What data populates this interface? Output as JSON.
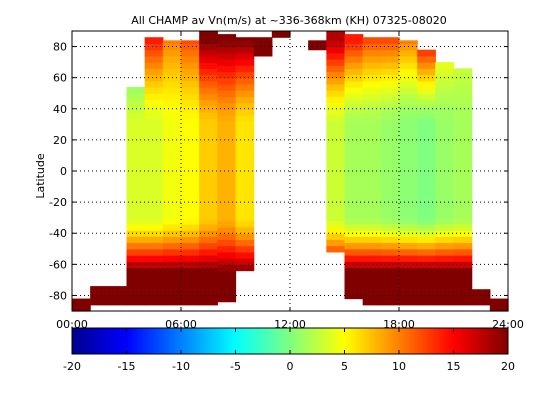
{
  "chart_data": {
    "type": "heatmap",
    "title": "All CHAMP av Vn(m/s) at ~336-368km (KH) 07325-08020",
    "xlabel": "",
    "ylabel": "Latitude",
    "xlim": [
      0,
      24
    ],
    "ylim": [
      -90,
      90
    ],
    "x_tick_values": [
      0,
      6,
      12,
      18,
      24
    ],
    "x_tick_labels": [
      "00:00",
      "06:00",
      "12:00",
      "18:00",
      "24:00"
    ],
    "y_tick_values": [
      -80,
      -60,
      -40,
      -20,
      0,
      20,
      40,
      60,
      80
    ],
    "y_tick_labels": [
      "-80",
      "-60",
      "-40",
      "-20",
      "0",
      "20",
      "40",
      "60",
      "80"
    ],
    "grid": "dotted",
    "colormap": "jet",
    "colorbar": {
      "range": [
        -20,
        20
      ],
      "tick_values": [
        -20,
        -15,
        -10,
        -5,
        0,
        5,
        10,
        15,
        20
      ],
      "tick_labels": [
        "-20",
        "-15",
        "-10",
        "-5",
        "0",
        "5",
        "10",
        "15",
        "20"
      ],
      "placement": "bottom"
    },
    "bin_width_hours": 1,
    "lat_bin_deg": 4,
    "columns": [
      {
        "t": 0.5,
        "lat_min": -90,
        "lat_max": -82,
        "lowlat": 20,
        "hilat": 20
      },
      {
        "t": 1.5,
        "lat_min": -86,
        "lat_max": -74,
        "lowlat": 20,
        "hilat": 20
      },
      {
        "t": 2.5,
        "lat_min": -86,
        "lat_max": -74,
        "lowlat": 20,
        "hilat": 20
      },
      {
        "t": 3.5,
        "lat_min": -86,
        "lat_max": 54,
        "lowlat": 3.5,
        "hilat": -5
      },
      {
        "t": 4.5,
        "lat_min": -86,
        "lat_max": 86,
        "lowlat": 3.5,
        "hilat": 14
      },
      {
        "t": 5.5,
        "lat_min": -86,
        "lat_max": 84,
        "lowlat": 4.5,
        "hilat": 10
      },
      {
        "t": 6.5,
        "lat_min": -86,
        "lat_max": 84,
        "lowlat": 5,
        "hilat": 12
      },
      {
        "t": 7.5,
        "lat_min": -86,
        "lat_max": 90,
        "lowlat": 7,
        "hilat": 20
      },
      {
        "t": 8.5,
        "lat_min": -84,
        "lat_max": 88,
        "lowlat": 8,
        "hilat": 20
      },
      {
        "t": 9.5,
        "lat_min": -64,
        "lat_max": 86,
        "lowlat": 6,
        "hilat": 20
      },
      {
        "t": 10.5,
        "lat_min": 74,
        "lat_max": 86,
        "lowlat": 20,
        "hilat": 20
      },
      {
        "t": 11.5,
        "lat_min": 86,
        "lat_max": 90,
        "lowlat": 20,
        "hilat": 20
      },
      {
        "t": 13.5,
        "lat_min": 78,
        "lat_max": 84,
        "lowlat": 20,
        "hilat": 20
      },
      {
        "t": 14.5,
        "lat_min": -52,
        "lat_max": 90,
        "lowlat": 3,
        "hilat": 18
      },
      {
        "t": 15.5,
        "lat_min": -82,
        "lat_max": 88,
        "lowlat": 1.5,
        "hilat": 14
      },
      {
        "t": 16.5,
        "lat_min": -86,
        "lat_max": 86,
        "lowlat": 1.5,
        "hilat": 12
      },
      {
        "t": 17.5,
        "lat_min": -86,
        "lat_max": 86,
        "lowlat": 1,
        "hilat": 12
      },
      {
        "t": 18.5,
        "lat_min": -86,
        "lat_max": 84,
        "lowlat": 0.5,
        "hilat": 10
      },
      {
        "t": 19.5,
        "lat_min": -86,
        "lat_max": 78,
        "lowlat": 0,
        "hilat": 16
      },
      {
        "t": 20.5,
        "lat_min": -86,
        "lat_max": 70,
        "lowlat": 1,
        "hilat": 6
      },
      {
        "t": 21.5,
        "lat_min": -86,
        "lat_max": 66,
        "lowlat": 1.5,
        "hilat": 4
      },
      {
        "t": 22.5,
        "lat_min": -86,
        "lat_max": -76,
        "lowlat": 20,
        "hilat": 20
      },
      {
        "t": 23.5,
        "lat_min": -90,
        "lat_max": -82,
        "lowlat": 20,
        "hilat": 20
      }
    ]
  }
}
